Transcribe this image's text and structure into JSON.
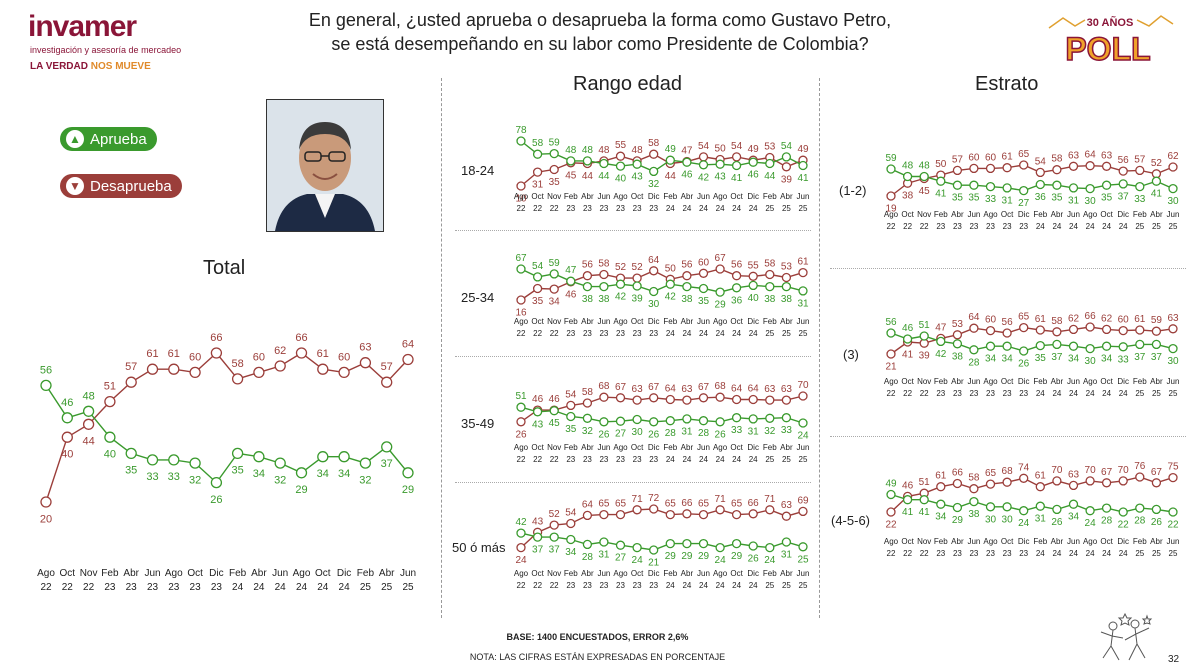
{
  "header": {
    "logo_name": "invamer",
    "logo_tagline": "investigación y asesoría de mercadeo",
    "slogan_part1": "LA VERDAD ",
    "slogan_part2": "NOS MUEVE",
    "question_line1": "En general, ¿usted aprueba o desaprueba la forma como Gustavo Petro,",
    "question_line2": "se está desempeñando en su labor como Presidente de Colombia?",
    "badge_top": "30 AÑOS",
    "badge_main": "POLL"
  },
  "legend": {
    "approve_label": "Aprueba",
    "disapprove_label": "Desaprueba"
  },
  "colors": {
    "approve": "#3a9a2d",
    "disapprove": "#9b3e3a"
  },
  "sections": {
    "total_title": "Total",
    "rango_title": "Rango edad",
    "estrato_title": "Estrato"
  },
  "chart_data": [
    {
      "id": "total",
      "type": "line",
      "title": "Total",
      "categories": [
        [
          "Ago",
          "22"
        ],
        [
          "Oct",
          "22"
        ],
        [
          "Nov",
          "22"
        ],
        [
          "Feb",
          "23"
        ],
        [
          "Abr",
          "23"
        ],
        [
          "Jun",
          "23"
        ],
        [
          "Ago",
          "23"
        ],
        [
          "Oct",
          "23"
        ],
        [
          "Dic",
          "23"
        ],
        [
          "Feb",
          "24"
        ],
        [
          "Abr",
          "24"
        ],
        [
          "Jun",
          "24"
        ],
        [
          "Ago",
          "24"
        ],
        [
          "Oct",
          "24"
        ],
        [
          "Dic",
          "24"
        ],
        [
          "Feb",
          "25"
        ],
        [
          "Abr",
          "25"
        ],
        [
          "Jun",
          "25"
        ]
      ],
      "series": [
        {
          "name": "Aprueba",
          "values": [
            56,
            46,
            48,
            40,
            35,
            33,
            33,
            32,
            26,
            35,
            34,
            32,
            29,
            34,
            34,
            32,
            37,
            29
          ]
        },
        {
          "name": "Desaprueba",
          "values": [
            20,
            40,
            44,
            51,
            57,
            61,
            61,
            60,
            66,
            58,
            60,
            62,
            66,
            61,
            60,
            63,
            57,
            64
          ]
        }
      ]
    },
    {
      "id": "age-18-24",
      "type": "line",
      "title": "18-24",
      "categories": [
        [
          "Ago",
          "22"
        ],
        [
          "Oct",
          "22"
        ],
        [
          "Nov",
          "22"
        ],
        [
          "Feb",
          "23"
        ],
        [
          "Abr",
          "23"
        ],
        [
          "Jun",
          "23"
        ],
        [
          "Ago",
          "23"
        ],
        [
          "Oct",
          "23"
        ],
        [
          "Dic",
          "23"
        ],
        [
          "Feb",
          "24"
        ],
        [
          "Abr",
          "24"
        ],
        [
          "Jun",
          "24"
        ],
        [
          "Ago",
          "24"
        ],
        [
          "Oct",
          "24"
        ],
        [
          "Dic",
          "24"
        ],
        [
          "Feb",
          "25"
        ],
        [
          "Abr",
          "25"
        ],
        [
          "Jun",
          "25"
        ]
      ],
      "series": [
        {
          "name": "Aprueba",
          "values": [
            78,
            58,
            59,
            48,
            48,
            44,
            40,
            43,
            32,
            49,
            46,
            42,
            43,
            41,
            46,
            44,
            54,
            41
          ]
        },
        {
          "name": "Desaprueba",
          "values": [
            10,
            31,
            35,
            45,
            44,
            48,
            55,
            48,
            58,
            44,
            47,
            54,
            50,
            54,
            49,
            53,
            39,
            49
          ]
        }
      ]
    },
    {
      "id": "age-25-34",
      "type": "line",
      "title": "25-34",
      "categories": [
        [
          "Ago",
          "22"
        ],
        [
          "Oct",
          "22"
        ],
        [
          "Nov",
          "22"
        ],
        [
          "Feb",
          "23"
        ],
        [
          "Abr",
          "23"
        ],
        [
          "Jun",
          "23"
        ],
        [
          "Ago",
          "23"
        ],
        [
          "Oct",
          "23"
        ],
        [
          "Dic",
          "23"
        ],
        [
          "Feb",
          "24"
        ],
        [
          "Abr",
          "24"
        ],
        [
          "Jun",
          "24"
        ],
        [
          "Ago",
          "24"
        ],
        [
          "Oct",
          "24"
        ],
        [
          "Dic",
          "24"
        ],
        [
          "Feb",
          "25"
        ],
        [
          "Abr",
          "25"
        ],
        [
          "Jun",
          "25"
        ]
      ],
      "series": [
        {
          "name": "Aprueba",
          "values": [
            67,
            54,
            59,
            47,
            38,
            38,
            42,
            39,
            30,
            42,
            38,
            35,
            29,
            36,
            40,
            38,
            38,
            31
          ]
        },
        {
          "name": "Desaprueba",
          "values": [
            16,
            35,
            34,
            46,
            56,
            58,
            52,
            52,
            64,
            50,
            56,
            60,
            67,
            56,
            55,
            58,
            53,
            61
          ]
        }
      ]
    },
    {
      "id": "age-35-49",
      "type": "line",
      "title": "35-49",
      "categories": [
        [
          "Ago",
          "22"
        ],
        [
          "Oct",
          "22"
        ],
        [
          "Nov",
          "22"
        ],
        [
          "Feb",
          "23"
        ],
        [
          "Abr",
          "23"
        ],
        [
          "Jun",
          "23"
        ],
        [
          "Ago",
          "23"
        ],
        [
          "Oct",
          "23"
        ],
        [
          "Dic",
          "23"
        ],
        [
          "Feb",
          "24"
        ],
        [
          "Abr",
          "24"
        ],
        [
          "Jun",
          "24"
        ],
        [
          "Ago",
          "24"
        ],
        [
          "Oct",
          "24"
        ],
        [
          "Dic",
          "24"
        ],
        [
          "Feb",
          "25"
        ],
        [
          "Abr",
          "25"
        ],
        [
          "Jun",
          "25"
        ]
      ],
      "series": [
        {
          "name": "Aprueba",
          "values": [
            51,
            43,
            45,
            35,
            32,
            26,
            27,
            30,
            26,
            28,
            31,
            28,
            26,
            33,
            31,
            32,
            33,
            24
          ]
        },
        {
          "name": "Desaprueba",
          "values": [
            26,
            46,
            46,
            54,
            58,
            68,
            67,
            63,
            67,
            64,
            63,
            67,
            68,
            64,
            64,
            63,
            63,
            70
          ]
        }
      ]
    },
    {
      "id": "age-50-mas",
      "type": "line",
      "title": "50 ó más",
      "categories": [
        [
          "Ago",
          "22"
        ],
        [
          "Oct",
          "22"
        ],
        [
          "Nov",
          "22"
        ],
        [
          "Feb",
          "23"
        ],
        [
          "Abr",
          "23"
        ],
        [
          "Jun",
          "23"
        ],
        [
          "Ago",
          "23"
        ],
        [
          "Oct",
          "23"
        ],
        [
          "Dic",
          "23"
        ],
        [
          "Feb",
          "24"
        ],
        [
          "Abr",
          "24"
        ],
        [
          "Jun",
          "24"
        ],
        [
          "Ago",
          "24"
        ],
        [
          "Oct",
          "24"
        ],
        [
          "Dic",
          "24"
        ],
        [
          "Feb",
          "25"
        ],
        [
          "Abr",
          "25"
        ],
        [
          "Jun",
          "25"
        ]
      ],
      "series": [
        {
          "name": "Aprueba",
          "values": [
            42,
            37,
            37,
            34,
            28,
            31,
            27,
            24,
            21,
            29,
            29,
            29,
            24,
            29,
            26,
            24,
            31,
            25
          ]
        },
        {
          "name": "Desaprueba",
          "values": [
            24,
            43,
            52,
            54,
            64,
            65,
            65,
            71,
            72,
            65,
            66,
            65,
            71,
            65,
            66,
            71,
            63,
            69
          ]
        }
      ]
    },
    {
      "id": "estrato-1-2",
      "type": "line",
      "title": "(1-2)",
      "categories": [
        [
          "Ago",
          "22"
        ],
        [
          "Oct",
          "22"
        ],
        [
          "Nov",
          "22"
        ],
        [
          "Feb",
          "23"
        ],
        [
          "Abr",
          "23"
        ],
        [
          "Jun",
          "23"
        ],
        [
          "Ago",
          "23"
        ],
        [
          "Oct",
          "23"
        ],
        [
          "Dic",
          "23"
        ],
        [
          "Feb",
          "24"
        ],
        [
          "Abr",
          "24"
        ],
        [
          "Jun",
          "24"
        ],
        [
          "Ago",
          "24"
        ],
        [
          "Oct",
          "24"
        ],
        [
          "Dic",
          "24"
        ],
        [
          "Feb",
          "25"
        ],
        [
          "Abr",
          "25"
        ],
        [
          "Jun",
          "25"
        ]
      ],
      "series": [
        {
          "name": "Aprueba",
          "values": [
            59,
            48,
            48,
            41,
            35,
            35,
            33,
            31,
            27,
            36,
            35,
            31,
            30,
            35,
            37,
            33,
            41,
            30
          ]
        },
        {
          "name": "Desaprueba",
          "values": [
            19,
            38,
            45,
            50,
            57,
            60,
            60,
            61,
            65,
            54,
            58,
            63,
            64,
            63,
            56,
            57,
            52,
            62
          ]
        }
      ]
    },
    {
      "id": "estrato-3",
      "type": "line",
      "title": "(3)",
      "categories": [
        [
          "Ago",
          "22"
        ],
        [
          "Oct",
          "22"
        ],
        [
          "Nov",
          "22"
        ],
        [
          "Feb",
          "23"
        ],
        [
          "Abr",
          "23"
        ],
        [
          "Jun",
          "23"
        ],
        [
          "Ago",
          "23"
        ],
        [
          "Oct",
          "23"
        ],
        [
          "Dic",
          "23"
        ],
        [
          "Feb",
          "24"
        ],
        [
          "Abr",
          "24"
        ],
        [
          "Jun",
          "24"
        ],
        [
          "Ago",
          "24"
        ],
        [
          "Oct",
          "24"
        ],
        [
          "Dic",
          "24"
        ],
        [
          "Feb",
          "25"
        ],
        [
          "Abr",
          "25"
        ],
        [
          "Jun",
          "25"
        ]
      ],
      "series": [
        {
          "name": "Aprueba",
          "values": [
            56,
            46,
            51,
            42,
            38,
            28,
            34,
            34,
            26,
            35,
            37,
            34,
            30,
            34,
            33,
            37,
            37,
            30
          ]
        },
        {
          "name": "Desaprueba",
          "values": [
            21,
            41,
            39,
            47,
            53,
            64,
            60,
            56,
            65,
            61,
            58,
            62,
            66,
            62,
            60,
            61,
            59,
            63
          ]
        }
      ]
    },
    {
      "id": "estrato-4-5-6",
      "type": "line",
      "title": "(4-5-6)",
      "categories": [
        [
          "Ago",
          "22"
        ],
        [
          "Oct",
          "22"
        ],
        [
          "Nov",
          "22"
        ],
        [
          "Feb",
          "23"
        ],
        [
          "Abr",
          "23"
        ],
        [
          "Jun",
          "23"
        ],
        [
          "Ago",
          "23"
        ],
        [
          "Oct",
          "23"
        ],
        [
          "Dic",
          "23"
        ],
        [
          "Feb",
          "24"
        ],
        [
          "Abr",
          "24"
        ],
        [
          "Jun",
          "24"
        ],
        [
          "Ago",
          "24"
        ],
        [
          "Oct",
          "24"
        ],
        [
          "Dic",
          "24"
        ],
        [
          "Feb",
          "25"
        ],
        [
          "Abr",
          "25"
        ],
        [
          "Jun",
          "25"
        ]
      ],
      "series": [
        {
          "name": "Aprueba",
          "values": [
            49,
            41,
            41,
            34,
            29,
            38,
            30,
            30,
            24,
            31,
            26,
            34,
            24,
            28,
            22,
            28,
            26,
            22
          ]
        },
        {
          "name": "Desaprueba",
          "values": [
            22,
            46,
            51,
            61,
            66,
            58,
            65,
            68,
            74,
            61,
            70,
            63,
            70,
            67,
            70,
            76,
            67,
            75
          ]
        }
      ]
    }
  ],
  "footer": {
    "base": "BASE: 1400 ENCUESTADOS, ERROR 2,6%",
    "nota": "NOTA: LAS CIFRAS ESTÁN EXPRESADAS EN PORCENTAJE",
    "page": "32"
  }
}
